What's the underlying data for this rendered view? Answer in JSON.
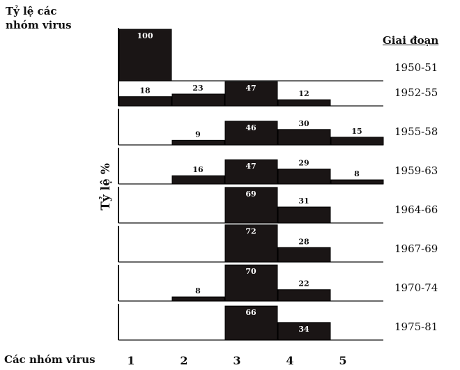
{
  "labels": {
    "top_line1": "Tỷ lệ các",
    "top_line2": "nhóm virus",
    "period_header": "Giai đoạn",
    "y_axis": "Tỷ lệ %",
    "x_axis": "Các nhóm virus"
  },
  "colors": {
    "bar": "#1a1515",
    "axis": "#111111",
    "label_on_bar": "#ffffff",
    "label_above_bar": "#111111"
  },
  "chart_data": {
    "type": "bar",
    "title": "",
    "xlabel": "Các nhóm virus",
    "ylabel": "Tỷ lệ %",
    "categories": [
      "1",
      "2",
      "3",
      "4",
      "5"
    ],
    "ylim": [
      0,
      100
    ],
    "series": [
      {
        "name": "1950-51",
        "values": [
          100,
          null,
          null,
          null,
          null
        ]
      },
      {
        "name": "1952-55",
        "values": [
          18,
          23,
          47,
          12,
          null
        ]
      },
      {
        "name": "1955-58",
        "values": [
          null,
          9,
          46,
          30,
          15
        ]
      },
      {
        "name": "1959-63",
        "values": [
          null,
          16,
          47,
          29,
          8
        ]
      },
      {
        "name": "1964-66",
        "values": [
          null,
          null,
          69,
          31,
          null
        ]
      },
      {
        "name": "1967-69",
        "values": [
          null,
          null,
          72,
          28,
          null
        ]
      },
      {
        "name": "1970-74",
        "values": [
          null,
          8,
          70,
          22,
          null
        ]
      },
      {
        "name": "1975-81",
        "values": [
          null,
          null,
          66,
          34,
          null
        ]
      }
    ]
  }
}
